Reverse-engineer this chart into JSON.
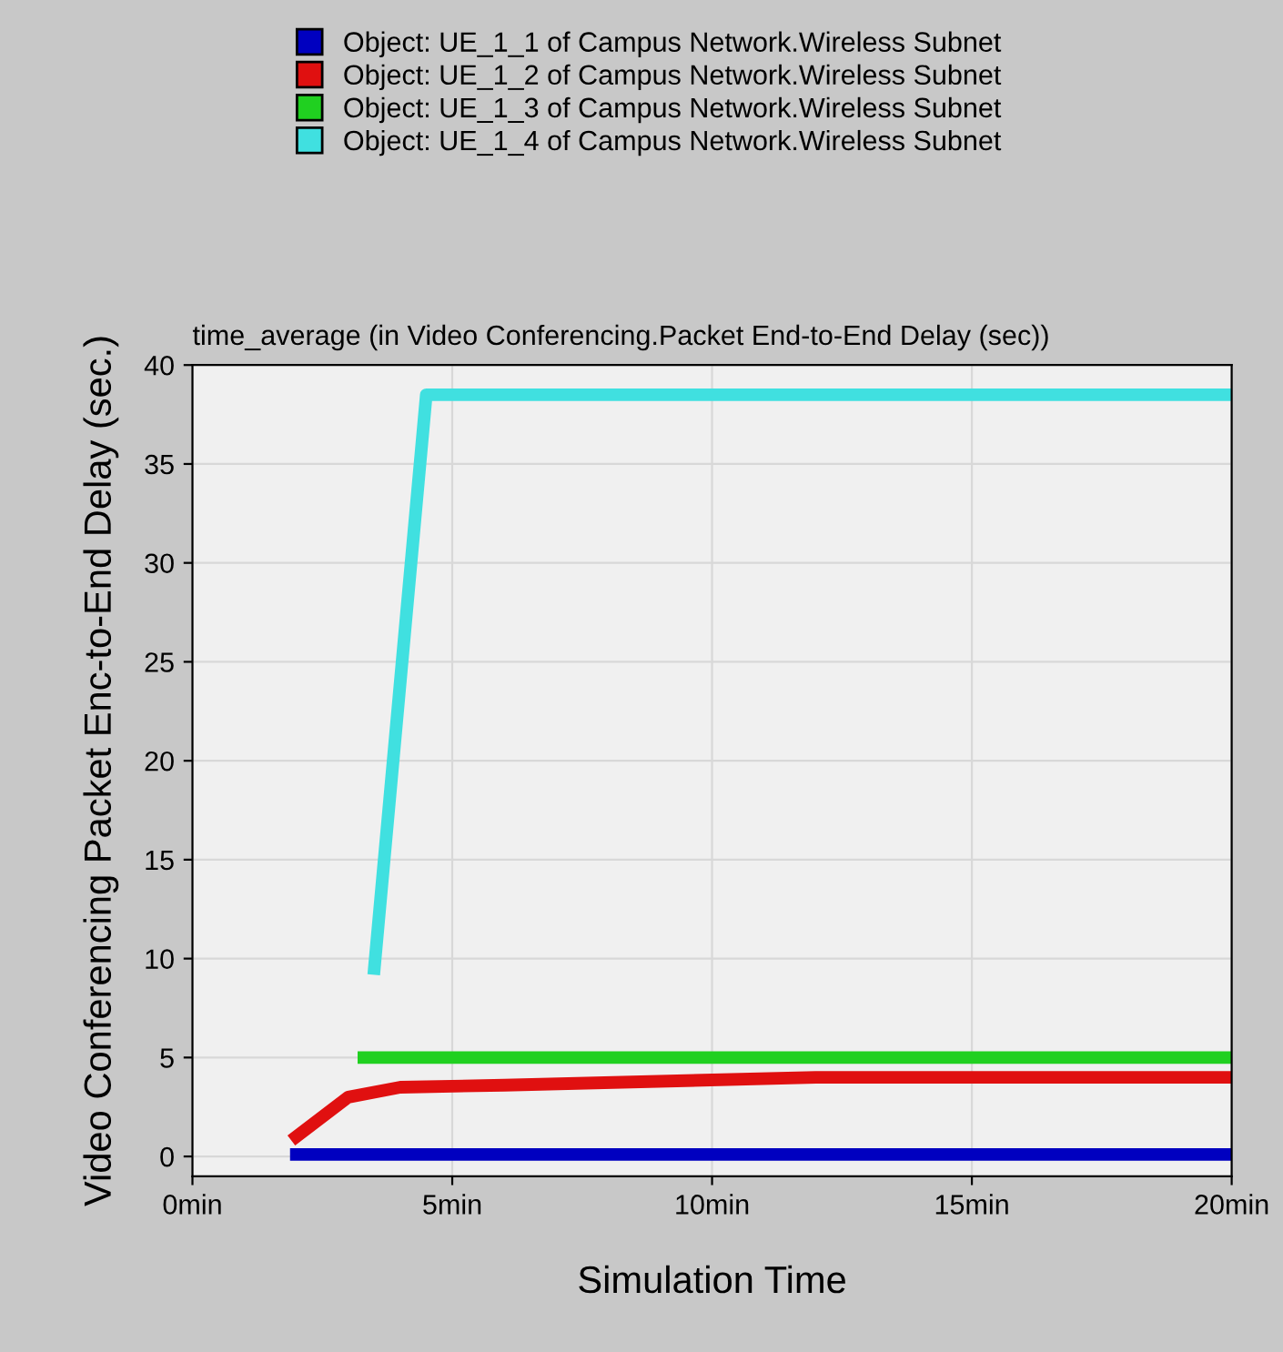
{
  "chart_data": {
    "type": "line",
    "title": "time_average (in Video Conferencing.Packet End-to-End Delay (sec))",
    "xlabel": "Simulation Time",
    "ylabel": "Video Conferencing Packet Enc-to-End Delay (sec.)",
    "series": [
      {
        "name": "Object: UE_1_1 of Campus Network.Wireless Subnet",
        "color": "#0000c0",
        "x": [
          2,
          20
        ],
        "values": [
          0.1,
          0.1
        ]
      },
      {
        "name": "Object: UE_1_2 of Campus Network.Wireless Subnet",
        "color": "#e01010",
        "x": [
          2,
          3,
          4,
          6,
          12,
          20
        ],
        "values": [
          1,
          3,
          3.5,
          3.6,
          4,
          4
        ]
      },
      {
        "name": "Object: UE_1_3 of Campus Network.Wireless Subnet",
        "color": "#20d020",
        "x": [
          3.3,
          20
        ],
        "values": [
          5,
          5
        ]
      },
      {
        "name": "Object: UE_1_4 of Campus Network.Wireless Subnet",
        "color": "#40e0e0",
        "x": [
          3.5,
          4.5,
          20
        ],
        "values": [
          9.5,
          38.5,
          38.5
        ]
      }
    ],
    "xlim": [
      0,
      20
    ],
    "xticks": [
      {
        "value": 0,
        "label": "0min"
      },
      {
        "value": 5,
        "label": "5min"
      },
      {
        "value": 10,
        "label": "10min"
      },
      {
        "value": 15,
        "label": "15min"
      },
      {
        "value": 20,
        "label": "20min"
      }
    ],
    "ylim": [
      -1,
      40
    ],
    "yticks": [
      0,
      5,
      10,
      15,
      20,
      25,
      30,
      35,
      40
    ],
    "grid": true,
    "legend": "top",
    "line_style": "solid",
    "marker": "none"
  }
}
